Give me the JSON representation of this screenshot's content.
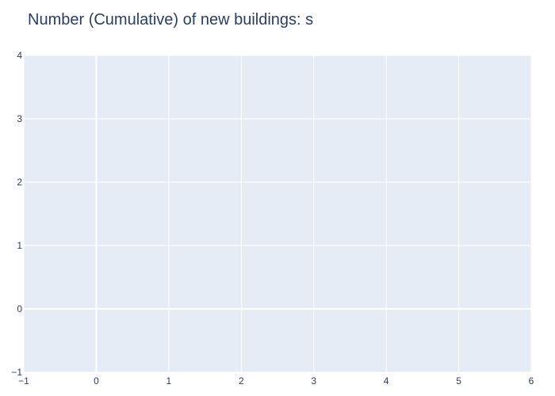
{
  "chart_data": {
    "type": "line",
    "title": "Number (Cumulative) of new buildings: s",
    "xlabel": "",
    "ylabel": "",
    "xlim": [
      -1,
      6
    ],
    "ylim": [
      -1,
      4
    ],
    "xticks": [
      -1,
      0,
      1,
      2,
      3,
      4,
      5,
      6
    ],
    "yticks": [
      -1,
      0,
      1,
      2,
      3,
      4
    ],
    "xtick_labels": [
      "−1",
      "0",
      "1",
      "2",
      "3",
      "4",
      "5",
      "6"
    ],
    "ytick_labels": [
      "−1",
      "0",
      "1",
      "2",
      "3",
      "4"
    ],
    "grid": true,
    "series": [],
    "colors": {
      "plot_background": "#e5ecf6",
      "grid": "#ffffff",
      "text": "#2a3f5f"
    }
  }
}
